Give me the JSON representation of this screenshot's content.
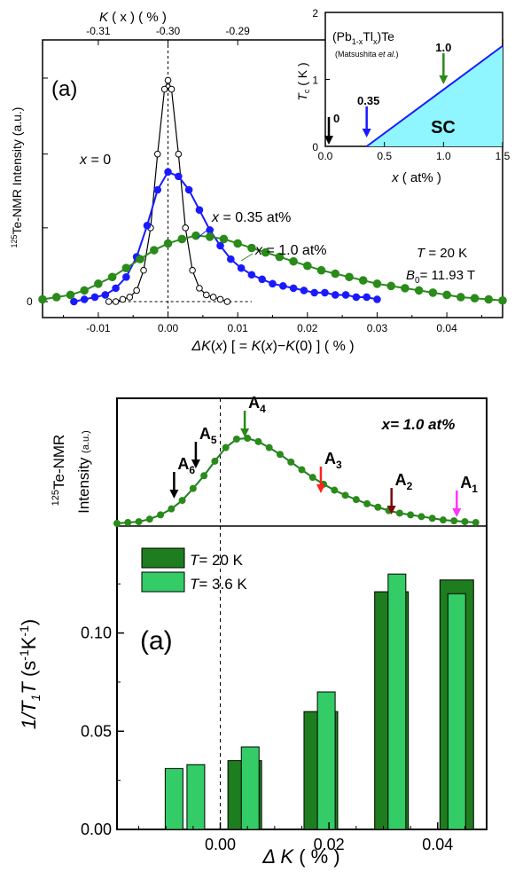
{
  "top_panel": {
    "label": "(a)",
    "top_axis_title": "K ( x ) ( % )",
    "x_axis_title": "ΔK(x) [ = K(x)−K(0) ] ( % )",
    "y_axis_title": "125Te-NMR Intensity (a.u.)",
    "zero_label": "0",
    "temperature": "T = 20 K",
    "field": "B0 = 11.93 T",
    "curve_labels": [
      "x = 0",
      "x = 0.35 at%",
      "x = 1.0 at%"
    ]
  },
  "inset": {
    "compound": "(Pb1-xTlx)Te",
    "reference": "(Matsushita et al.)",
    "region_label": "SC",
    "x_axis_title": "x ( at% )",
    "y_axis_title": "Tc ( K )",
    "arrow_labels": [
      "0",
      "0.35",
      "1.0"
    ]
  },
  "bottom_panel": {
    "label": "(a)",
    "spectrum_label": "x= 1.0 at%",
    "y_axis_title_upper": "125Te-NMR Intensity (a.u.)",
    "y_axis_title_lower": "1/T1T (s-1K-1)",
    "x_axis_title": "ΔK ( % )",
    "legend": [
      "T= 20 K",
      "T= 3.6 K"
    ],
    "arrow_labels": [
      "A1",
      "A2",
      "A3",
      "A4",
      "A5",
      "A6"
    ]
  },
  "colors": {
    "black": "#000000",
    "blue": "#1a1aff",
    "green": "#2a8a1a",
    "dark_green": "#1e7d1e",
    "light_green": "#33cc66",
    "cyan": "#8ff5ff",
    "red": "#ff2020",
    "dark_red": "#7a0a0a",
    "magenta": "#ff33ff"
  },
  "chart_data": [
    {
      "type": "line",
      "xlabel": "ΔK(x) [ = K(x)−K(0) ] ( % )",
      "ylabel": "125Te-NMR Intensity (a.u.)",
      "xlim": [
        -0.018,
        0.048
      ],
      "top_axis": {
        "label": "K ( x ) ( % )",
        "ticks": [
          -0.31,
          -0.3,
          -0.29
        ]
      },
      "x_ticks": [
        -0.01,
        0.0,
        0.01,
        0.02,
        0.03,
        0.04
      ],
      "series": [
        {
          "name": "x = 0",
          "color": "#000000",
          "x": [
            -0.0085,
            -0.0075,
            -0.0065,
            -0.0055,
            -0.0045,
            -0.0035,
            -0.0025,
            -0.0015,
            -0.0005,
            0.0,
            0.0005,
            0.0015,
            0.0025,
            0.0035,
            0.0045,
            0.0055,
            0.0065,
            0.0075,
            0.0085
          ],
          "y": [
            0.0,
            0.0,
            0.01,
            0.02,
            0.05,
            0.14,
            0.33,
            0.66,
            0.95,
            0.99,
            0.95,
            0.66,
            0.33,
            0.14,
            0.06,
            0.03,
            0.02,
            0.01,
            0.0
          ]
        },
        {
          "name": "x = 0.35 at%",
          "color": "#1a1aff",
          "x": [
            -0.0135,
            -0.012,
            -0.0105,
            -0.009,
            -0.0075,
            -0.006,
            -0.0045,
            -0.003,
            -0.0015,
            0.0,
            0.0015,
            0.003,
            0.0045,
            0.006,
            0.0075,
            0.009,
            0.0105,
            0.012,
            0.0135,
            0.015,
            0.0165,
            0.018,
            0.0195,
            0.021,
            0.0225,
            0.024,
            0.0255,
            0.027,
            0.0285,
            0.03
          ],
          "y": [
            0.0,
            0.01,
            0.02,
            0.03,
            0.06,
            0.11,
            0.2,
            0.34,
            0.5,
            0.58,
            0.56,
            0.5,
            0.41,
            0.32,
            0.25,
            0.19,
            0.15,
            0.12,
            0.1,
            0.08,
            0.07,
            0.06,
            0.05,
            0.04,
            0.04,
            0.03,
            0.03,
            0.02,
            0.02,
            0.01
          ]
        },
        {
          "name": "x = 1.0 at%",
          "color": "#2a8a1a",
          "x": [
            -0.018,
            -0.016,
            -0.014,
            -0.012,
            -0.01,
            -0.008,
            -0.006,
            -0.004,
            -0.002,
            0.0,
            0.002,
            0.004,
            0.006,
            0.008,
            0.01,
            0.012,
            0.014,
            0.016,
            0.018,
            0.02,
            0.022,
            0.024,
            0.026,
            0.028,
            0.03,
            0.032,
            0.034,
            0.036,
            0.038,
            0.04,
            0.042,
            0.044,
            0.046,
            0.048
          ],
          "y": [
            0.01,
            0.02,
            0.03,
            0.05,
            0.08,
            0.11,
            0.15,
            0.19,
            0.23,
            0.26,
            0.28,
            0.295,
            0.29,
            0.28,
            0.26,
            0.24,
            0.22,
            0.2,
            0.18,
            0.16,
            0.14,
            0.125,
            0.11,
            0.095,
            0.08,
            0.07,
            0.06,
            0.05,
            0.04,
            0.03,
            0.02,
            0.015,
            0.01,
            0.005
          ]
        }
      ]
    },
    {
      "type": "area",
      "title": "(Pb1-xTlx)Te",
      "xlabel": "x ( at% )",
      "ylabel": "Tc ( K )",
      "xlim": [
        0,
        1.5
      ],
      "ylim": [
        0,
        2
      ],
      "x_ticks": [
        0.0,
        0.5,
        1.0,
        1.5
      ],
      "y_ticks": [
        0,
        1,
        2
      ],
      "series": [
        {
          "name": "SC",
          "x": [
            0.35,
            1.5
          ],
          "y": [
            0.0,
            1.5
          ]
        }
      ],
      "arrows_x": [
        0.0,
        0.35,
        1.0
      ]
    },
    {
      "type": "line",
      "title": "x= 1.0 at%",
      "ylabel": "125Te-NMR Intensity (a.u.)",
      "xlim": [
        -0.019,
        0.049
      ],
      "series": [
        {
          "name": "x= 1.0 at%",
          "x": [
            -0.019,
            -0.017,
            -0.015,
            -0.013,
            -0.011,
            -0.009,
            -0.007,
            -0.005,
            -0.003,
            -0.001,
            0.001,
            0.003,
            0.005,
            0.007,
            0.009,
            0.011,
            0.013,
            0.015,
            0.017,
            0.019,
            0.021,
            0.023,
            0.025,
            0.027,
            0.029,
            0.031,
            0.033,
            0.035,
            0.037,
            0.039,
            0.041,
            0.043,
            0.045,
            0.047
          ],
          "y": [
            0.0,
            0.01,
            0.02,
            0.05,
            0.1,
            0.17,
            0.27,
            0.41,
            0.56,
            0.73,
            0.89,
            0.99,
            1.0,
            0.96,
            0.89,
            0.81,
            0.72,
            0.63,
            0.54,
            0.46,
            0.39,
            0.33,
            0.28,
            0.23,
            0.19,
            0.15,
            0.12,
            0.1,
            0.08,
            0.06,
            0.04,
            0.03,
            0.02,
            0.01
          ]
        }
      ],
      "arrows": [
        {
          "label": "A1",
          "x": 0.0435
        },
        {
          "label": "A2",
          "x": 0.0315
        },
        {
          "label": "A3",
          "x": 0.0185
        },
        {
          "label": "A4",
          "x": 0.0045
        },
        {
          "label": "A5",
          "x": -0.0045
        },
        {
          "label": "A6",
          "x": -0.0085
        }
      ]
    },
    {
      "type": "bar",
      "xlabel": "ΔK ( % )",
      "ylabel": "1/T1T (s-1K-1)",
      "xlim": [
        -0.019,
        0.049
      ],
      "ylim": [
        0,
        0.14
      ],
      "x_ticks": [
        0.0,
        0.02,
        0.04
      ],
      "y_ticks": [
        0.0,
        0.05,
        0.1
      ],
      "series": [
        {
          "name": "T= 20 K",
          "x": [
            0.0045,
            0.0185,
            0.0315,
            0.0435
          ],
          "values": [
            0.035,
            0.06,
            0.121,
            0.127
          ]
        },
        {
          "name": "T= 3.6 K",
          "x": [
            -0.0085,
            -0.0045,
            0.0055,
            0.0195,
            0.0325,
            0.0435
          ],
          "values": [
            0.031,
            0.033,
            0.042,
            0.07,
            0.13,
            0.12
          ]
        }
      ]
    }
  ]
}
